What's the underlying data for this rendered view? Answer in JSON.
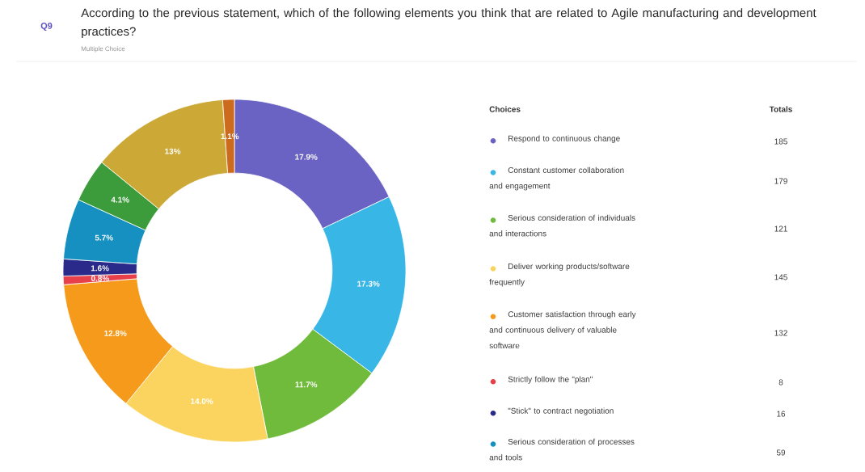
{
  "chart_data": {
    "type": "donut",
    "title": "According to the previous statement, which of the following elements you think that are related to Agile manufacturing and development practices?",
    "subtitle": "Multiple Choice",
    "legend_title": "Choices",
    "categories": [
      "Respond to continuous change",
      "Constant customer collaboration and engagement",
      "Serious consideration of individuals and interactions",
      "Deliver working products/software frequently",
      "Customer satisfaction through early and continuous delivery of valuable software",
      "Strictly follow the \"plan\"",
      "\"Stick\" to contract negotiation",
      "Serious consideration of processes and tools",
      null,
      null,
      null
    ],
    "values": [
      17.9,
      17.3,
      11.7,
      14.0,
      12.8,
      0.8,
      1.6,
      5.7,
      4.1,
      13,
      1.1
    ],
    "value_labels": [
      "17.9%",
      "17.3%",
      "11.7%",
      "14.0%",
      "12.8%",
      "0.8%",
      "1.6%",
      "5.7%",
      "4.1%",
      "13%",
      "1.1%"
    ],
    "colors": [
      "#6a63c3",
      "#38b6e6",
      "#71bb3c",
      "#fbd460",
      "#f59a1b",
      "#e8404a",
      "#2a2a8a",
      "#1590c0",
      "#3c9c3c",
      "#cca836",
      "#cc6a1e"
    ],
    "legend": "right",
    "annotations": [
      "Q9",
      "Totals",
      "185",
      "179",
      "121",
      "145",
      "132",
      "8",
      "16",
      "59"
    ]
  }
}
